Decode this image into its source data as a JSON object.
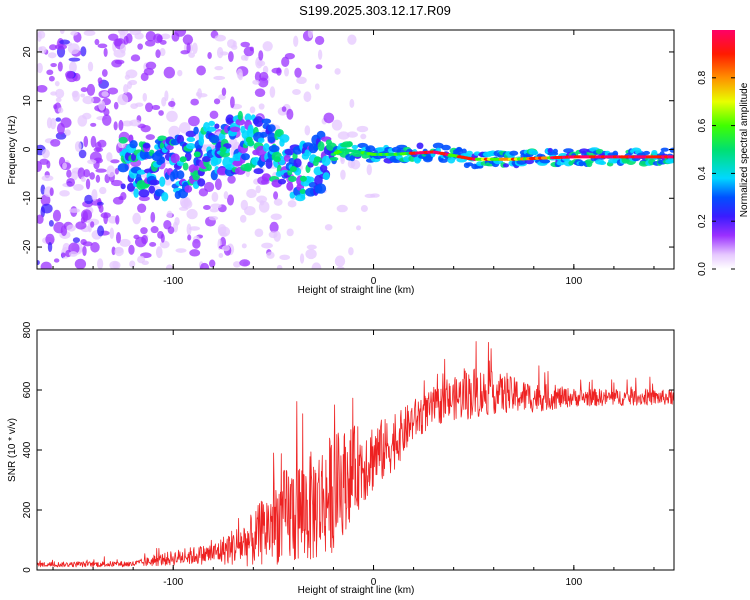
{
  "title": "S199.2025.303.12.17.R09",
  "chart_data": [
    {
      "type": "heatmap",
      "name": "spectrogram",
      "xlabel": "Height of straight line (km)",
      "ylabel": "Frequency (Hz)",
      "xlim": [
        -168,
        150
      ],
      "ylim": [
        -24.5,
        24.5
      ],
      "x_ticks": [
        -100,
        0,
        100
      ],
      "y_ticks": [
        20,
        10,
        0,
        -10,
        -20
      ],
      "colorbar": {
        "label": "Normalized spectral amplitude",
        "range": [
          0,
          1
        ],
        "ticks": [
          0.0,
          0.2,
          0.4,
          0.6,
          0.8
        ]
      },
      "signal_band": [
        {
          "x": -120,
          "y": -3
        },
        {
          "x": -100,
          "y": -4
        },
        {
          "x": -80,
          "y": 0
        },
        {
          "x": -60,
          "y": 2
        },
        {
          "x": -50,
          "y": -1
        },
        {
          "x": -40,
          "y": -5
        },
        {
          "x": -25,
          "y": -2
        },
        {
          "x": -15,
          "y": 0
        },
        {
          "x": 0,
          "y": -1
        },
        {
          "x": 10,
          "y": -1
        },
        {
          "x": 30,
          "y": -0.5
        },
        {
          "x": 50,
          "y": -2
        },
        {
          "x": 70,
          "y": -2
        },
        {
          "x": 100,
          "y": -1.5
        },
        {
          "x": 150,
          "y": -1.5
        }
      ]
    },
    {
      "type": "line",
      "name": "snr",
      "color": "#ee2222",
      "xlabel": "Height of straight line (km)",
      "ylabel": "SNR (10 * v/v)",
      "xlim": [
        -168,
        150
      ],
      "ylim": [
        0,
        800
      ],
      "x_ticks": [
        -100,
        0,
        100
      ],
      "y_ticks": [
        0,
        200,
        400,
        600,
        800
      ],
      "envelope": [
        {
          "x": -168,
          "base": 18,
          "noise": 8
        },
        {
          "x": -120,
          "base": 20,
          "noise": 10
        },
        {
          "x": -100,
          "base": 40,
          "noise": 25
        },
        {
          "x": -80,
          "base": 55,
          "noise": 35
        },
        {
          "x": -60,
          "base": 100,
          "noise": 90
        },
        {
          "x": -50,
          "base": 160,
          "noise": 140
        },
        {
          "x": -40,
          "base": 190,
          "noise": 180
        },
        {
          "x": -30,
          "base": 210,
          "noise": 190
        },
        {
          "x": -20,
          "base": 260,
          "noise": 200
        },
        {
          "x": -10,
          "base": 330,
          "noise": 150
        },
        {
          "x": 0,
          "base": 380,
          "noise": 120
        },
        {
          "x": 10,
          "base": 420,
          "noise": 90
        },
        {
          "x": 20,
          "base": 500,
          "noise": 70
        },
        {
          "x": 30,
          "base": 540,
          "noise": 60
        },
        {
          "x": 40,
          "base": 570,
          "noise": 70
        },
        {
          "x": 50,
          "base": 590,
          "noise": 90
        },
        {
          "x": 60,
          "base": 590,
          "noise": 70
        },
        {
          "x": 80,
          "base": 575,
          "noise": 50
        },
        {
          "x": 100,
          "base": 575,
          "noise": 30
        },
        {
          "x": 150,
          "base": 575,
          "noise": 25
        }
      ]
    }
  ]
}
